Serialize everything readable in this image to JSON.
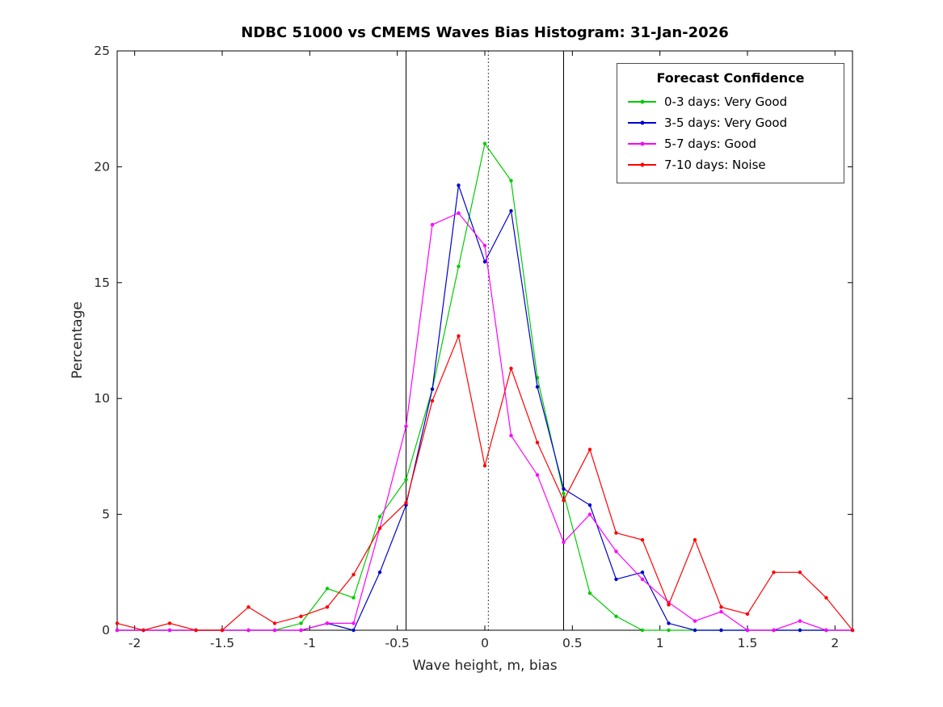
{
  "chart_data": {
    "type": "line",
    "title": "NDBC 51000 vs CMEMS Waves Bias Histogram: 31-Jan-2026",
    "xlabel": "Wave height, m, bias",
    "ylabel": "Percentage",
    "xlim": [
      -2.1,
      2.1
    ],
    "ylim": [
      0,
      25
    ],
    "xticks": [
      -2,
      -1.5,
      -1,
      -0.5,
      0,
      0.5,
      1,
      1.5,
      2
    ],
    "yticks": [
      0,
      5,
      10,
      15,
      20,
      25
    ],
    "grid": false,
    "legend": {
      "title": "Forecast Confidence",
      "position": "top-right"
    },
    "x": [
      -2.1,
      -1.95,
      -1.8,
      -1.65,
      -1.5,
      -1.35,
      -1.2,
      -1.05,
      -0.9,
      -0.75,
      -0.6,
      -0.45,
      -0.3,
      -0.15,
      0,
      0.15,
      0.3,
      0.45,
      0.6,
      0.75,
      0.9,
      1.05,
      1.2,
      1.35,
      1.5,
      1.65,
      1.8,
      1.95,
      2.1
    ],
    "series": [
      {
        "name": "0-3 days: Very Good",
        "color": "#00cc00",
        "values": [
          0,
          0,
          0,
          0,
          0,
          0,
          0,
          0.3,
          1.8,
          1.4,
          4.9,
          6.5,
          10.4,
          15.7,
          21.0,
          19.4,
          10.9,
          5.9,
          1.6,
          0.6,
          0,
          0,
          0,
          0,
          0,
          0,
          0,
          0,
          0
        ]
      },
      {
        "name": "3-5 days: Very Good",
        "color": "#0000cc",
        "values": [
          0,
          0,
          0,
          0,
          0,
          0,
          0,
          0,
          0.3,
          0,
          2.5,
          5.4,
          10.4,
          19.2,
          15.9,
          18.1,
          10.5,
          6.1,
          5.4,
          2.2,
          2.5,
          0.3,
          0,
          0,
          0,
          0,
          0,
          0,
          0
        ]
      },
      {
        "name": "5-7 days: Good",
        "color": "#ff00ff",
        "values": [
          0,
          0,
          0,
          0,
          0,
          0,
          0,
          0,
          0.3,
          0.3,
          4.4,
          8.8,
          17.5,
          18.0,
          16.6,
          8.4,
          6.7,
          3.8,
          5.0,
          3.4,
          2.2,
          1.2,
          0.4,
          0.8,
          0,
          0,
          0.4,
          0,
          0
        ]
      },
      {
        "name": "7-10 days: Noise",
        "color": "#ff0000",
        "values": [
          0.3,
          0,
          0.3,
          0,
          0,
          1.0,
          0.3,
          0.6,
          1.0,
          2.4,
          4.4,
          5.5,
          9.9,
          12.7,
          7.1,
          11.3,
          8.1,
          5.6,
          7.8,
          4.2,
          3.9,
          1.1,
          3.9,
          1.0,
          0.7,
          2.5,
          2.5,
          1.4,
          0
        ]
      }
    ],
    "reference_lines": [
      {
        "x": -0.45,
        "style": "solid",
        "color": "#000000"
      },
      {
        "x": 0.02,
        "style": "dotted",
        "color": "#000000"
      },
      {
        "x": 0.45,
        "style": "solid",
        "color": "#000000"
      }
    ]
  }
}
